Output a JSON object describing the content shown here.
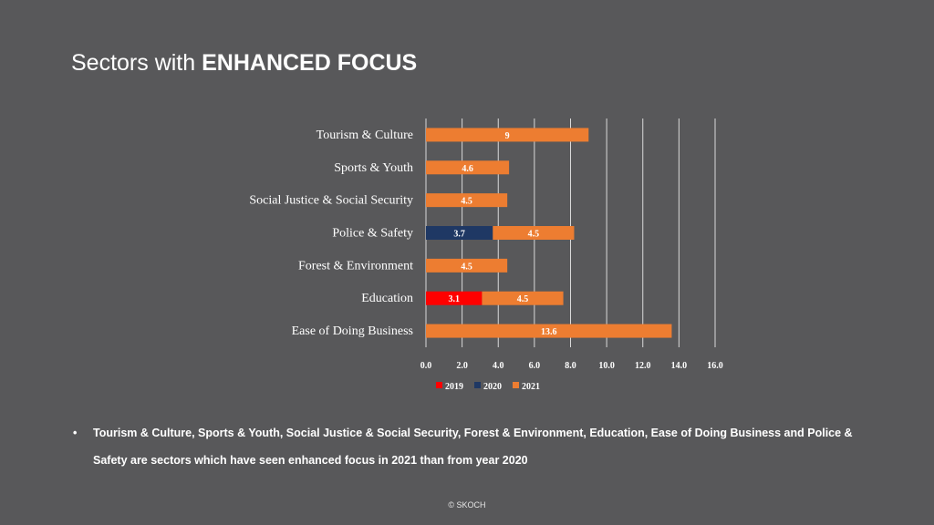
{
  "slide": {
    "title_prefix": "Sectors with ",
    "title_emphasis": "ENHANCED FOCUS",
    "bullet_marker": "•",
    "bullet_text": "Tourism & Culture, Sports & Youth, Social Justice & Social Security, Forest & Environment, Education, Ease of Doing Business and Police & Safety are sectors which have seen enhanced focus in 2021 than from year 2020",
    "footer": "© SKOCH"
  },
  "colors": {
    "background": "#58585a",
    "2019": "#ff0000",
    "2020": "#1f3864",
    "2021": "#ed7d31",
    "grid": "#d9d9d9"
  },
  "chart_data": {
    "type": "bar",
    "orientation": "horizontal",
    "stacked": true,
    "categories": [
      "Tourism & Culture",
      "Sports & Youth",
      "Social Justice & Social Security",
      "Police & Safety",
      "Forest & Environment",
      "Education",
      "Ease of Doing Business"
    ],
    "series": [
      {
        "name": "2019",
        "values": [
          null,
          null,
          null,
          null,
          null,
          3.1,
          null
        ],
        "labels": [
          "",
          "",
          "",
          "",
          "",
          "3.1",
          ""
        ]
      },
      {
        "name": "2020",
        "values": [
          null,
          null,
          null,
          3.7,
          null,
          null,
          null
        ],
        "labels": [
          "",
          "",
          "",
          "3.7",
          "",
          "",
          ""
        ]
      },
      {
        "name": "2021",
        "values": [
          9,
          4.6,
          4.5,
          4.5,
          4.5,
          4.5,
          13.6
        ],
        "labels": [
          "9",
          "4.6",
          "4.5",
          "4.5",
          "4.5",
          "4.5",
          "13.6"
        ]
      }
    ],
    "xticks": [
      "0.0",
      "2.0",
      "4.0",
      "6.0",
      "8.0",
      "10.0",
      "12.0",
      "14.0",
      "16.0"
    ],
    "xlim": [
      0,
      16
    ],
    "grid": true,
    "legend_position": "bottom"
  }
}
